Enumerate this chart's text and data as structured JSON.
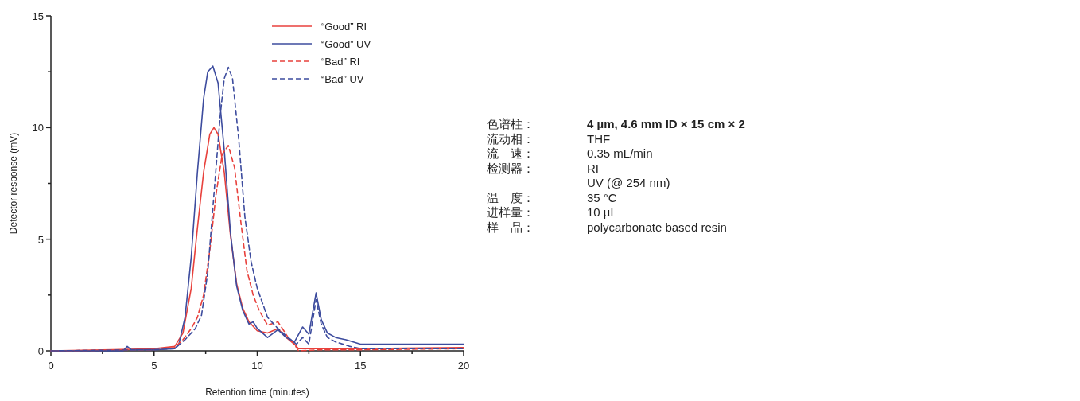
{
  "chart_data": [
    {
      "type": "line",
      "xlabel": "Retention time (minutes)",
      "ylabel": "Detector response (mV)",
      "xlim": [
        0,
        20
      ],
      "ylim": [
        0,
        15
      ],
      "xticks": [
        0,
        {
          "value": 2.5,
          "label": null
        },
        5,
        {
          "value": 7.5,
          "label": null
        },
        10,
        {
          "value": 12.5,
          "label": null
        },
        15,
        {
          "value": 17.5,
          "label": null
        },
        20
      ],
      "yticks": [
        0,
        {
          "value": 2.5,
          "label": null
        },
        5,
        {
          "value": 7.5,
          "label": null
        },
        10,
        {
          "value": 12.5,
          "label": null
        },
        15
      ],
      "legend": "top right",
      "grid": false,
      "series": [
        {
          "name": "“Good” RI",
          "color": "#e8413c",
          "line_style": "solid",
          "x": [
            0,
            3,
            5,
            6,
            6.4,
            6.8,
            7.1,
            7.4,
            7.7,
            7.9,
            8.1,
            8.4,
            8.7,
            9.0,
            9.3,
            9.6,
            10,
            10.5,
            11,
            11.4,
            11.8,
            12,
            13,
            15,
            20
          ],
          "values": [
            0,
            0.05,
            0.1,
            0.2,
            0.8,
            2.8,
            5.5,
            8.0,
            9.7,
            10.0,
            9.7,
            8.0,
            5.2,
            3.0,
            1.9,
            1.3,
            0.9,
            0.8,
            1.0,
            0.6,
            0.3,
            0.1,
            0.1,
            0.1,
            0.15
          ]
        },
        {
          "name": "“Good” UV",
          "color": "#3d4c9e",
          "line_style": "solid",
          "x": [
            0,
            3.5,
            3.7,
            3.9,
            5,
            6,
            6.2,
            6.5,
            6.8,
            7.1,
            7.4,
            7.6,
            7.85,
            8.1,
            8.4,
            8.7,
            9.0,
            9.3,
            9.6,
            9.8,
            10,
            10.5,
            11,
            11.4,
            11.8,
            12.2,
            12.5,
            12.85,
            13.1,
            13.4,
            13.8,
            14.3,
            15,
            20
          ],
          "values": [
            0,
            0,
            0.2,
            0.05,
            0.05,
            0.1,
            0.3,
            1.5,
            4.2,
            8.0,
            11.3,
            12.5,
            12.75,
            12.0,
            9.0,
            5.3,
            2.9,
            1.8,
            1.2,
            1.3,
            1.0,
            0.6,
            0.95,
            0.6,
            0.4,
            1.07,
            0.75,
            2.6,
            1.4,
            0.8,
            0.6,
            0.5,
            0.3,
            0.3
          ]
        },
        {
          "name": "“Bad” RI",
          "color": "#e8413c",
          "line_style": "dashed",
          "x": [
            0,
            5,
            6,
            6.4,
            6.8,
            7.1,
            7.4,
            7.7,
            8.0,
            8.3,
            8.6,
            8.9,
            9.2,
            9.5,
            9.8,
            10.1,
            10.5,
            11,
            11.5,
            11.8,
            12,
            13,
            15,
            20
          ],
          "values": [
            0,
            0.05,
            0.15,
            0.5,
            1.0,
            1.5,
            2.5,
            4.5,
            7.0,
            8.8,
            9.2,
            8.2,
            5.8,
            3.6,
            2.5,
            1.8,
            1.15,
            1.3,
            0.6,
            0.3,
            0,
            0.05,
            0.05,
            0.1
          ]
        },
        {
          "name": "“Bad” UV",
          "color": "#3d4c9e",
          "line_style": "dashed",
          "x": [
            0,
            5,
            6,
            6.5,
            7.0,
            7.3,
            7.6,
            7.9,
            8.2,
            8.4,
            8.6,
            8.8,
            9.1,
            9.4,
            9.7,
            10,
            10.5,
            11,
            11.5,
            11.9,
            12.2,
            12.5,
            12.85,
            13.1,
            13.4,
            13.8,
            14.5,
            15,
            20
          ],
          "values": [
            0,
            0.05,
            0.1,
            0.5,
            1.0,
            1.6,
            3.5,
            7.0,
            10.5,
            12.2,
            12.7,
            12.2,
            9.5,
            6.0,
            4.0,
            2.8,
            1.5,
            1.0,
            0.6,
            0.3,
            0.6,
            0.3,
            2.3,
            1.2,
            0.6,
            0.4,
            0.2,
            0.1,
            0.1
          ]
        }
      ]
    },
    {
      "type": "other",
      "annotations": [
        "色谱柱：",
        "4 µm, 4.6 mm ID × 15 cm × 2",
        "流动相：",
        "THF",
        "流　速：",
        "0.35 mL/min",
        "检测器：",
        "RI\nUV (@ 254 nm)",
        "温　度：",
        "35 °C",
        "进样量：",
        "10 µL",
        "样　品：",
        "polycarbonate based resin"
      ]
    }
  ]
}
